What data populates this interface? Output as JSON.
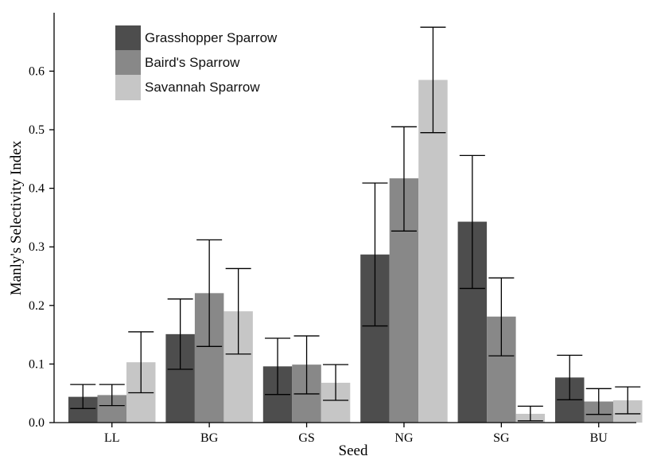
{
  "chart_data": {
    "type": "bar",
    "xlabel": "Seed",
    "ylabel": "Manly's Selectivity Index",
    "categories": [
      "LL",
      "BG",
      "GS",
      "NG",
      "SG",
      "BU"
    ],
    "ylim": [
      0,
      0.7
    ],
    "yticks": [
      "0.0",
      "0.1",
      "0.2",
      "0.3",
      "0.4",
      "0.5",
      "0.6"
    ],
    "legend_position": "top-left",
    "grid": false,
    "series": [
      {
        "name": "Grasshopper Sparrow",
        "color": "#4d4d4d",
        "values": [
          0.044,
          0.151,
          0.096,
          0.287,
          0.343,
          0.077
        ],
        "error_low": [
          0.024,
          0.091,
          0.048,
          0.165,
          0.229,
          0.039
        ],
        "error_high": [
          0.065,
          0.211,
          0.144,
          0.409,
          0.456,
          0.115
        ]
      },
      {
        "name": "Baird's Sparrow",
        "color": "#888888",
        "values": [
          0.047,
          0.221,
          0.099,
          0.417,
          0.181,
          0.036
        ],
        "error_low": [
          0.029,
          0.13,
          0.049,
          0.327,
          0.114,
          0.014
        ],
        "error_high": [
          0.065,
          0.312,
          0.148,
          0.505,
          0.247,
          0.058
        ]
      },
      {
        "name": "Savannah Sparrow",
        "color": "#c6c6c6",
        "values": [
          0.103,
          0.19,
          0.068,
          0.585,
          0.015,
          0.038
        ],
        "error_low": [
          0.051,
          0.117,
          0.038,
          0.495,
          0.003,
          0.015
        ],
        "error_high": [
          0.155,
          0.263,
          0.099,
          0.675,
          0.028,
          0.061
        ]
      }
    ]
  }
}
